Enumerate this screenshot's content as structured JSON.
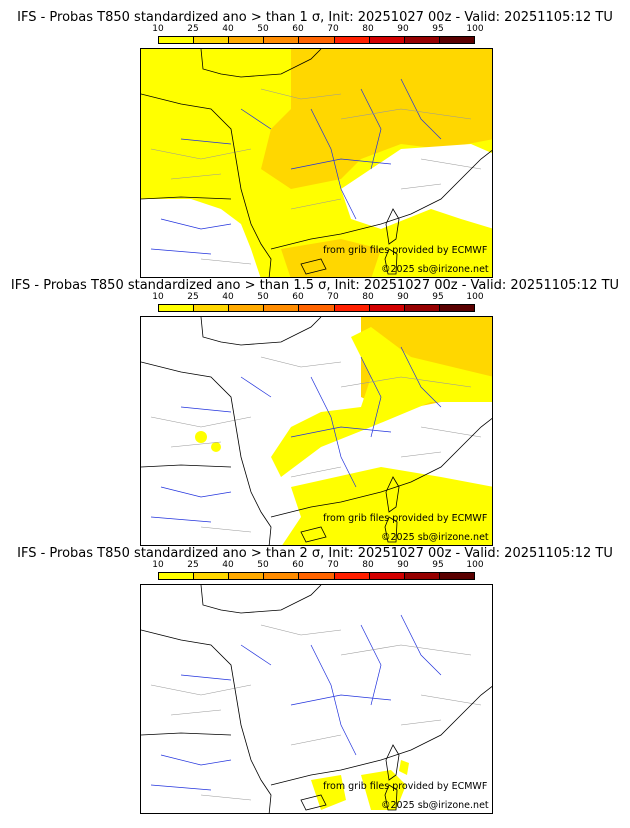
{
  "colorbar": {
    "ticks": [
      "10",
      "25",
      "40",
      "50",
      "60",
      "70",
      "80",
      "90",
      "95",
      "100"
    ],
    "colors": [
      "#ffff00",
      "#ffd700",
      "#ffaa00",
      "#ff8c00",
      "#ff6400",
      "#ff2000",
      "#d20000",
      "#960000",
      "#5a0000"
    ]
  },
  "panels": [
    {
      "title": "IFS - Probas T850  standardized ano > than 1 σ, Init: 20251027 00z - Valid: 20251105:12 TU",
      "source": "from grib files provided by ECMWF",
      "copyright": "©2025 sb@irizone.net"
    },
    {
      "title": "IFS - Probas T850  standardized ano > than 1.5 σ, Init: 20251027 00z - Valid: 20251105:12 TU",
      "source": "from grib files provided by ECMWF",
      "copyright": "©2025 sb@irizone.net"
    },
    {
      "title": "IFS - Probas T850  standardized ano > than 2 σ, Init: 20251027 00z - Valid: 20251105:12 TU",
      "source": "from grib files provided by ECMWF",
      "copyright": "©2025 sb@irizone.net"
    }
  ]
}
